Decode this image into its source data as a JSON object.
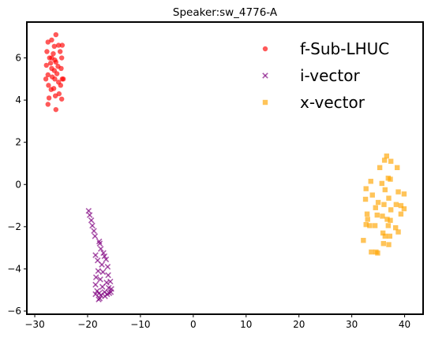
{
  "chart_data": {
    "type": "scatter",
    "title": "Speaker:sw_4776-A",
    "xlabel": "",
    "ylabel": "",
    "xlim": [
      -31.5,
      43.5
    ],
    "ylim": [
      -6.15,
      7.7
    ],
    "xticks": [
      -30,
      -20,
      -10,
      0,
      10,
      20,
      30,
      40
    ],
    "yticks": [
      -6,
      -4,
      -2,
      0,
      2,
      4,
      6
    ],
    "grid": false,
    "legend_position": "top-right",
    "series": [
      {
        "name": "f-Sub-LHUC",
        "marker": "circle",
        "color": "#ff0000",
        "points": [
          [
            -26.0,
            7.1
          ],
          [
            -27.5,
            6.75
          ],
          [
            -26.8,
            6.85
          ],
          [
            -25.5,
            6.6
          ],
          [
            -24.8,
            6.6
          ],
          [
            -26.3,
            6.55
          ],
          [
            -27.7,
            6.3
          ],
          [
            -26.5,
            6.2
          ],
          [
            -25.2,
            6.3
          ],
          [
            -27.2,
            6.0
          ],
          [
            -26.8,
            6.0
          ],
          [
            -26.2,
            5.9
          ],
          [
            -24.9,
            6.0
          ],
          [
            -26.0,
            5.8
          ],
          [
            -27.0,
            5.75
          ],
          [
            -25.6,
            5.6
          ],
          [
            -26.8,
            5.5
          ],
          [
            -27.8,
            5.65
          ],
          [
            -26.3,
            5.4
          ],
          [
            -25.0,
            5.5
          ],
          [
            -27.5,
            5.2
          ],
          [
            -26.7,
            5.1
          ],
          [
            -25.8,
            5.25
          ],
          [
            -26.2,
            5.0
          ],
          [
            -27.9,
            5.0
          ],
          [
            -24.6,
            5.0
          ],
          [
            -25.5,
            4.85
          ],
          [
            -27.4,
            4.7
          ],
          [
            -26.4,
            4.55
          ],
          [
            -25.1,
            4.7
          ],
          [
            -26.9,
            4.5
          ],
          [
            -27.3,
            4.1
          ],
          [
            -26.1,
            4.2
          ],
          [
            -25.4,
            4.3
          ],
          [
            -24.9,
            4.05
          ],
          [
            -27.5,
            3.8
          ],
          [
            -26.0,
            3.55
          ],
          [
            -24.8,
            5.0
          ]
        ]
      },
      {
        "name": "i-vector",
        "marker": "x",
        "color": "#800080",
        "points": [
          [
            -19.8,
            -1.25
          ],
          [
            -19.6,
            -1.45
          ],
          [
            -19.3,
            -1.7
          ],
          [
            -19.1,
            -1.95
          ],
          [
            -18.8,
            -2.2
          ],
          [
            -18.6,
            -2.45
          ],
          [
            -17.8,
            -2.7
          ],
          [
            -17.7,
            -2.8
          ],
          [
            -17.5,
            -3.05
          ],
          [
            -17.0,
            -3.25
          ],
          [
            -18.5,
            -3.35
          ],
          [
            -16.8,
            -3.4
          ],
          [
            -16.5,
            -3.55
          ],
          [
            -18.1,
            -3.6
          ],
          [
            -17.3,
            -3.8
          ],
          [
            -16.2,
            -3.9
          ],
          [
            -18.0,
            -4.1
          ],
          [
            -17.1,
            -4.15
          ],
          [
            -16.1,
            -4.3
          ],
          [
            -18.4,
            -4.4
          ],
          [
            -17.6,
            -4.5
          ],
          [
            -16.4,
            -4.65
          ],
          [
            -18.5,
            -4.75
          ],
          [
            -15.7,
            -4.6
          ],
          [
            -17.2,
            -4.85
          ],
          [
            -16.0,
            -4.9
          ],
          [
            -15.5,
            -4.95
          ],
          [
            -18.2,
            -5.05
          ],
          [
            -17.8,
            -5.15
          ],
          [
            -16.8,
            -5.1
          ],
          [
            -15.9,
            -5.15
          ],
          [
            -18.5,
            -5.2
          ],
          [
            -17.5,
            -5.25
          ],
          [
            -17.7,
            -5.4
          ],
          [
            -16.3,
            -5.2
          ],
          [
            -15.6,
            -5.1
          ],
          [
            -17.9,
            -5.45
          ],
          [
            -16.7,
            -5.3
          ]
        ]
      },
      {
        "name": "x-vector",
        "marker": "square",
        "color": "#ffa500",
        "points": [
          [
            36.6,
            1.35
          ],
          [
            36.2,
            1.15
          ],
          [
            37.4,
            1.1
          ],
          [
            35.3,
            0.8
          ],
          [
            38.6,
            0.8
          ],
          [
            36.9,
            0.3
          ],
          [
            37.3,
            0.25
          ],
          [
            33.6,
            0.15
          ],
          [
            35.7,
            0.05
          ],
          [
            32.7,
            -0.2
          ],
          [
            36.3,
            -0.25
          ],
          [
            33.9,
            -0.5
          ],
          [
            38.8,
            -0.35
          ],
          [
            39.9,
            -0.45
          ],
          [
            37.0,
            -0.65
          ],
          [
            32.6,
            -0.7
          ],
          [
            35.0,
            -0.85
          ],
          [
            36.1,
            -0.95
          ],
          [
            38.4,
            -0.95
          ],
          [
            34.5,
            -1.1
          ],
          [
            37.4,
            -1.2
          ],
          [
            39.3,
            -1.0
          ],
          [
            39.9,
            -1.15
          ],
          [
            32.9,
            -1.4
          ],
          [
            34.8,
            -1.45
          ],
          [
            35.8,
            -1.5
          ],
          [
            39.3,
            -1.4
          ],
          [
            33.0,
            -1.65
          ],
          [
            36.7,
            -1.65
          ],
          [
            37.3,
            -1.7
          ],
          [
            32.7,
            -1.9
          ],
          [
            33.4,
            -1.95
          ],
          [
            34.4,
            -1.95
          ],
          [
            36.9,
            -1.95
          ],
          [
            38.3,
            -2.05
          ],
          [
            35.9,
            -2.3
          ],
          [
            38.8,
            -2.25
          ],
          [
            37.2,
            -2.45
          ],
          [
            32.2,
            -2.65
          ],
          [
            36.0,
            -2.8
          ],
          [
            36.3,
            -2.45
          ],
          [
            37.0,
            -2.85
          ],
          [
            33.7,
            -3.2
          ],
          [
            34.9,
            -3.25
          ],
          [
            34.6,
            -3.2
          ]
        ]
      }
    ]
  }
}
